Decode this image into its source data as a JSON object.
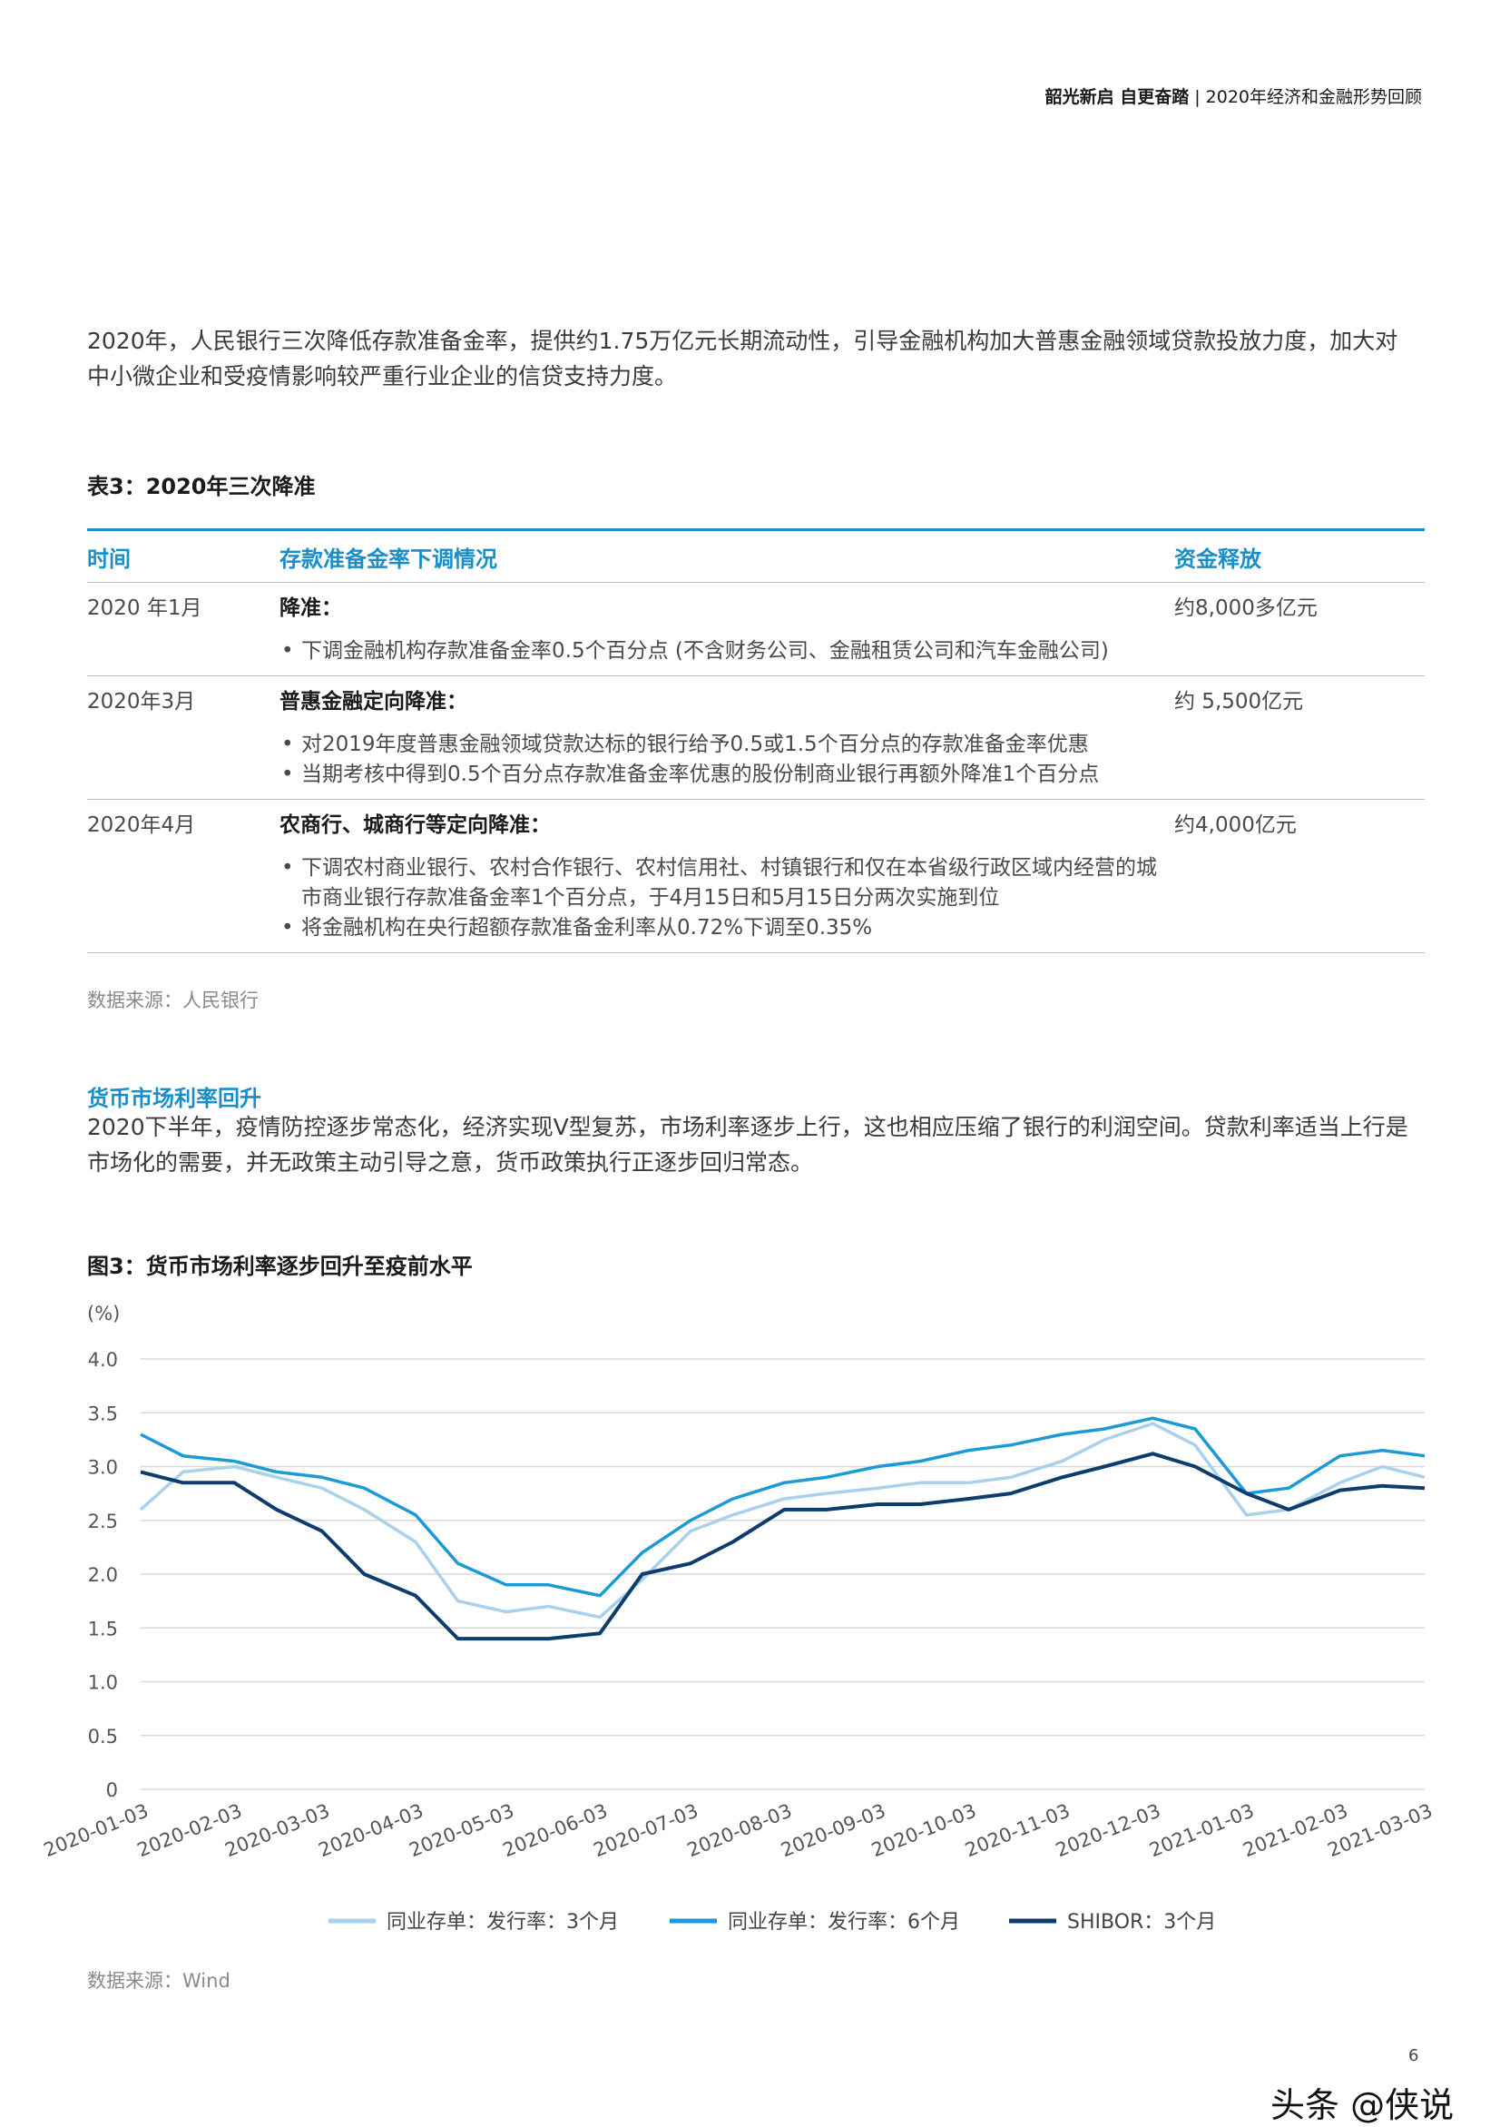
{
  "header": {
    "brand": "韶光新启 自更奋踏",
    "separator": "|",
    "report": "2020年经济和金融形势回顾"
  },
  "intro_text": "2020年，人民银行三次降低存款准备金率，提供约1.75万亿元长期流动性，引导金融机构加大普惠金融领域贷款投放力度，加大对中小微企业和受疫情影响较严重行业企业的信贷支持力度。",
  "table": {
    "title": "表3：2020年三次降准",
    "headers": [
      "时间",
      "存款准备金率下调情况",
      "资金释放"
    ],
    "rows": [
      {
        "time": "2020 年1月",
        "head": "降准：",
        "bullets": [
          "下调金融机构存款准备金率0.5个百分点 (不含财务公司、金融租赁公司和汽车金融公司)"
        ],
        "release": "约8,000多亿元"
      },
      {
        "time": "2020年3月",
        "head": "普惠金融定向降准：",
        "bullets": [
          "对2019年度普惠金融领域贷款达标的银行给予0.5或1.5个百分点的存款准备金率优惠",
          "当期考核中得到0.5个百分点存款准备金率优惠的股份制商业银行再额外降准1个百分点"
        ],
        "release": "约 5,500亿元"
      },
      {
        "time": "2020年4月",
        "head": "农商行、城商行等定向降准：",
        "bullets": [
          "下调农村商业银行、农村合作银行、农村信用社、村镇银行和仅在本省级行政区域内经营的城市商业银行存款准备金率1个百分点，于4月15日和5月15日分两次实施到位",
          "将金融机构在央行超额存款准备金利率从0.72%下调至0.35%"
        ],
        "release": "约4,000亿元"
      }
    ],
    "source": "数据来源：人民银行"
  },
  "section": {
    "heading": "货币市场利率回升",
    "body": "2020下半年，疫情防控逐步常态化，经济实现V型复苏，市场利率逐步上行，这也相应压缩了银行的利润空间。贷款利率适当上行是市场化的需要，并无政策主动引导之意，货币政策执行正逐步回归常态。"
  },
  "figure": {
    "title": "图3：货币市场利率逐步回升至疫前水平",
    "source": "数据来源：Wind"
  },
  "chart_data": {
    "type": "line",
    "ylabel": "(%)",
    "ylim": [
      0,
      4.0
    ],
    "yticks": [
      "4.0",
      "3.5",
      "3.0",
      "2.5",
      "2.0",
      "1.5",
      "1.0",
      "0.5",
      "0"
    ],
    "x_dates": [
      "2020-01-03",
      "2020-01-17",
      "2020-02-03",
      "2020-02-17",
      "2020-03-03",
      "2020-03-17",
      "2020-04-03",
      "2020-04-17",
      "2020-05-03",
      "2020-05-17",
      "2020-06-03",
      "2020-06-17",
      "2020-07-03",
      "2020-07-17",
      "2020-08-03",
      "2020-08-17",
      "2020-09-03",
      "2020-09-17",
      "2020-10-03",
      "2020-10-17",
      "2020-11-03",
      "2020-11-17",
      "2020-12-03",
      "2020-12-17",
      "2021-01-03",
      "2021-01-17",
      "2021-02-03",
      "2021-02-17",
      "2021-03-03"
    ],
    "xtick_labels": [
      "2020-01-03",
      "2020-02-03",
      "2020-03-03",
      "2020-04-03",
      "2020-05-03",
      "2020-06-03",
      "2020-07-03",
      "2020-08-03",
      "2020-09-03",
      "2020-10-03",
      "2020-11-03",
      "2020-12-03",
      "2021-01-03",
      "2021-02-03",
      "2021-03-03"
    ],
    "series": [
      {
        "name": "同业存单：发行率：3个月",
        "color": "#a9d1ea",
        "values": [
          2.6,
          2.95,
          3.0,
          2.9,
          2.8,
          2.6,
          2.3,
          1.75,
          1.65,
          1.7,
          1.6,
          1.95,
          2.4,
          2.55,
          2.7,
          2.75,
          2.8,
          2.85,
          2.85,
          2.9,
          3.05,
          3.25,
          3.4,
          3.2,
          2.55,
          2.6,
          2.85,
          3.0,
          2.9
        ]
      },
      {
        "name": "同业存单：发行率：6个月",
        "color": "#1a9ad6",
        "values": [
          3.3,
          3.1,
          3.05,
          2.95,
          2.9,
          2.8,
          2.55,
          2.1,
          1.9,
          1.9,
          1.8,
          2.2,
          2.5,
          2.7,
          2.85,
          2.9,
          3.0,
          3.05,
          3.15,
          3.2,
          3.3,
          3.35,
          3.45,
          3.35,
          2.75,
          2.8,
          3.1,
          3.15,
          3.1
        ]
      },
      {
        "name": "SHIBOR：3个月",
        "color": "#0d3c6e",
        "values": [
          2.95,
          2.85,
          2.85,
          2.6,
          2.4,
          2.0,
          1.8,
          1.4,
          1.4,
          1.4,
          1.45,
          2.0,
          2.1,
          2.3,
          2.6,
          2.6,
          2.65,
          2.65,
          2.7,
          2.75,
          2.9,
          3.0,
          3.12,
          3.0,
          2.75,
          2.6,
          2.78,
          2.82,
          2.8
        ]
      }
    ]
  },
  "page_number": "6",
  "watermark": "头条 @侠说"
}
